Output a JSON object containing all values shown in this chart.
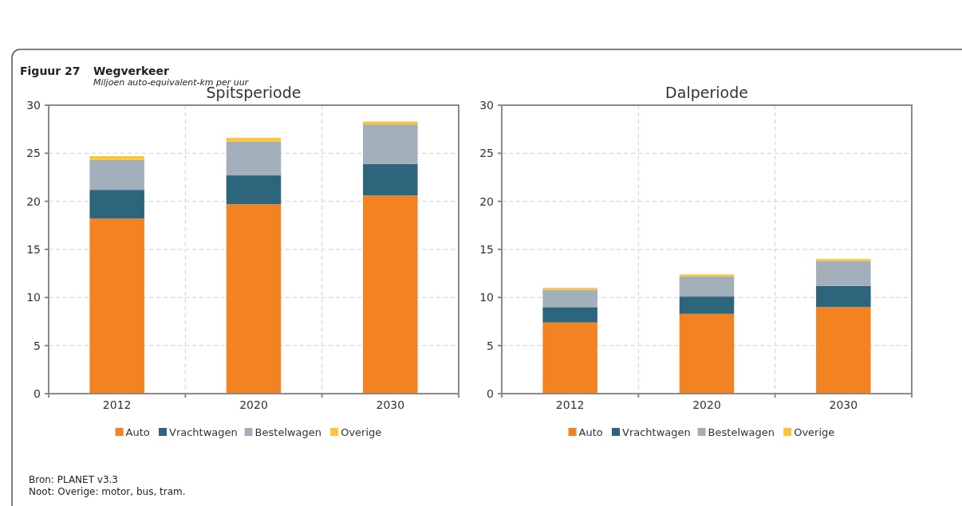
{
  "chart_data": [
    {
      "type": "bar",
      "title": "Spitsperiode",
      "stacked": true,
      "categories": [
        "2012",
        "2020",
        "2030"
      ],
      "series": [
        {
          "name": "Auto",
          "color": "#f28222",
          "values": [
            18.2,
            19.7,
            20.6
          ]
        },
        {
          "name": "Vrachtwagen",
          "color": "#2d667c",
          "values": [
            3.0,
            3.0,
            3.3
          ]
        },
        {
          "name": "Bestelwagen",
          "color": "#a4afbc",
          "values": [
            3.1,
            3.5,
            4.1
          ]
        },
        {
          "name": "Overige",
          "color": "#fcc537",
          "values": [
            0.4,
            0.4,
            0.3
          ]
        }
      ],
      "ylim": [
        0,
        30
      ],
      "yticks": [
        0,
        5,
        10,
        15,
        20,
        25,
        30
      ],
      "grid": true,
      "legend": "bottom",
      "annotations": [
        "Figuur 27",
        "Wegverkeer",
        "Miljoen auto-equivalent-km per uur",
        "Bron: PLANET v3.3",
        "Noot: Overige: motor, bus, tram."
      ]
    },
    {
      "type": "bar",
      "title": "Dalperiode",
      "stacked": true,
      "categories": [
        "2012",
        "2020",
        "2030"
      ],
      "series": [
        {
          "name": "Auto",
          "color": "#f28222",
          "values": [
            7.4,
            8.3,
            9.0
          ]
        },
        {
          "name": "Vrachtwagen",
          "color": "#2d667c",
          "values": [
            1.6,
            1.8,
            2.2
          ]
        },
        {
          "name": "Bestelwagen",
          "color": "#a4afbc",
          "values": [
            1.8,
            2.1,
            2.6
          ]
        },
        {
          "name": "Overige",
          "color": "#fcc537",
          "values": [
            0.2,
            0.2,
            0.2
          ]
        }
      ],
      "ylim": [
        0,
        30
      ],
      "yticks": [
        0,
        5,
        10,
        15,
        20,
        25,
        30
      ],
      "grid": true,
      "legend": "bottom"
    }
  ]
}
